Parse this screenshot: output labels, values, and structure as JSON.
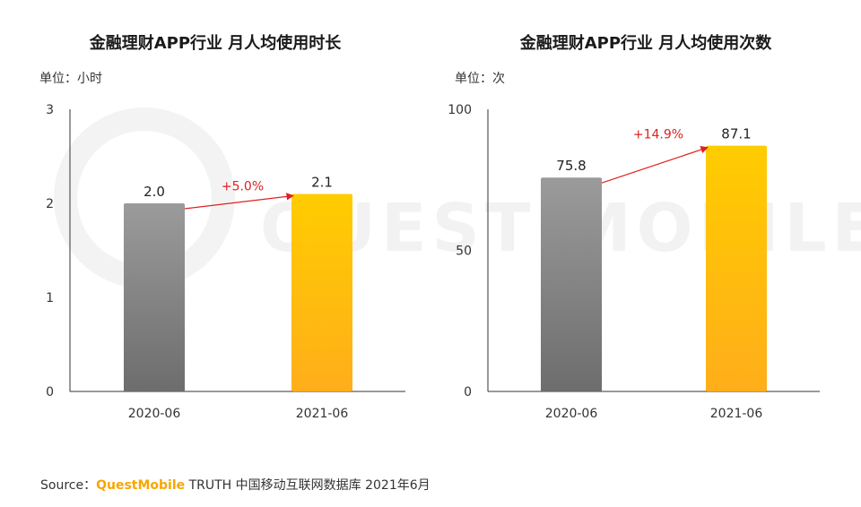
{
  "watermark": {
    "left": "QUEST",
    "right": "MOBILE"
  },
  "source": {
    "label": "Source：",
    "brand": "QuestMobile",
    "rest": " TRUTH 中国移动互联网数据库 2021年6月"
  },
  "colors": {
    "gray_top": "#9b9b9b",
    "gray_bottom": "#6d6d6d",
    "yellow_top": "#ffcc00",
    "yellow_bottom": "#ffae1a",
    "arrow": "#e02020",
    "axis": "#333333"
  },
  "chart_data": [
    {
      "type": "bar",
      "title": "金融理财APP行业 月人均使用时长",
      "unit_label": "单位：小时",
      "categories": [
        "2020-06",
        "2021-06"
      ],
      "values": [
        2.0,
        2.1
      ],
      "value_labels": [
        "2.0",
        "2.1"
      ],
      "yticks": [
        0,
        1,
        2,
        3
      ],
      "ylim": [
        0,
        3
      ],
      "growth_label": "+5.0%",
      "xlabel": "",
      "ylabel": ""
    },
    {
      "type": "bar",
      "title": "金融理财APP行业 月人均使用次数",
      "unit_label": "单位：次",
      "categories": [
        "2020-06",
        "2021-06"
      ],
      "values": [
        75.8,
        87.1
      ],
      "value_labels": [
        "75.8",
        "87.1"
      ],
      "yticks": [
        0,
        50,
        100
      ],
      "ylim": [
        0,
        100
      ],
      "growth_label": "+14.9%",
      "xlabel": "",
      "ylabel": ""
    }
  ]
}
